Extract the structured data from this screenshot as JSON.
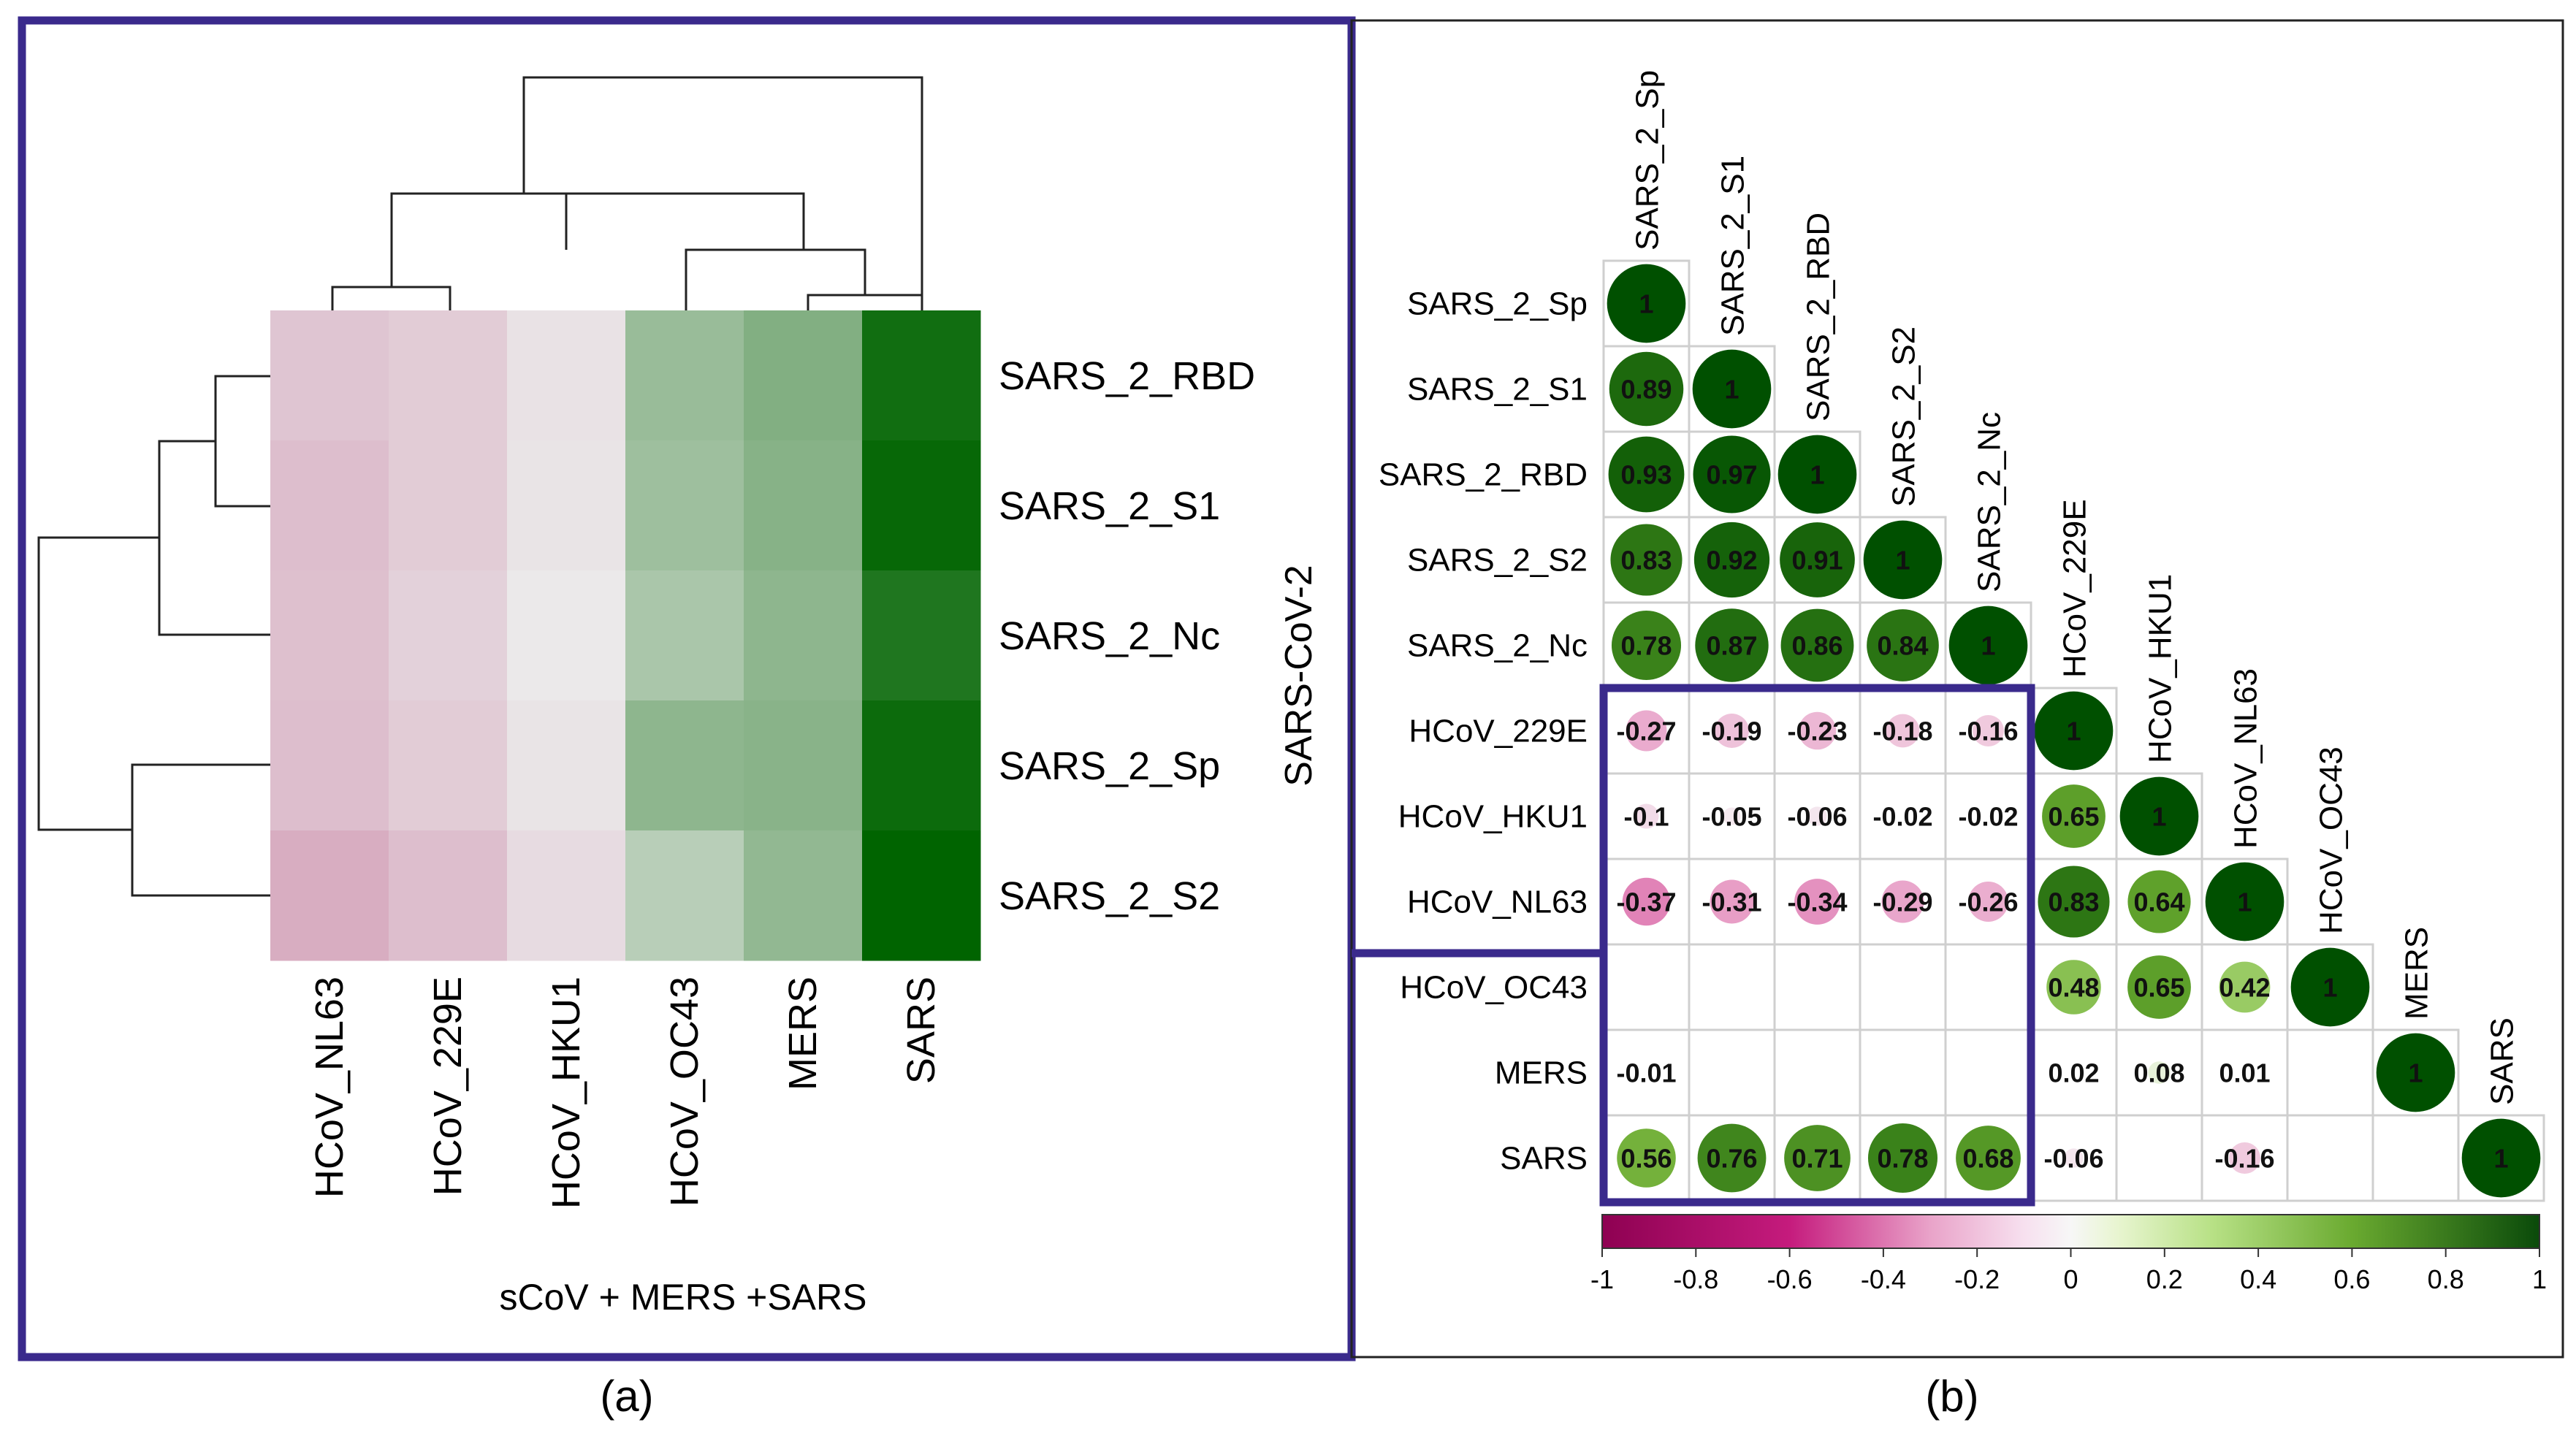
{
  "panel_a": {
    "caption": "(a)",
    "xlabel": "sCoV + MERS +SARS",
    "group_label": "SARS-CoV-2",
    "rows": [
      "SARS_2_RBD",
      "SARS_2_S1",
      "SARS_2_Nc",
      "SARS_2_Sp",
      "SARS_2_S2"
    ],
    "cols": [
      "HCoV_NL63",
      "HCoV_229E",
      "HCoV_HKU1",
      "HCoV_OC43",
      "MERS",
      "SARS"
    ]
  },
  "panel_b": {
    "caption": "(b)",
    "labels": [
      "SARS_2_Sp",
      "SARS_2_S1",
      "SARS_2_RBD",
      "SARS_2_S2",
      "SARS_2_Nc",
      "HCoV_229E",
      "HCoV_HKU1",
      "HCoV_NL63",
      "HCoV_OC43",
      "MERS",
      "SARS"
    ],
    "colorbar_ticks": [
      "-1",
      "-0.8",
      "-0.6",
      "-0.4",
      "-0.2",
      "0",
      "0.2",
      "0.4",
      "0.6",
      "0.8",
      "1"
    ]
  },
  "colors": {
    "frame": "#3a2a8c",
    "positive": "#006400",
    "negative": "#b0005a",
    "grid": "#cfcfcf"
  },
  "chart_data": [
    {
      "type": "heatmap",
      "title": "",
      "xlabel": "sCoV + MERS +SARS",
      "ylabel": "SARS-CoV-2",
      "rows": [
        "SARS_2_RBD",
        "SARS_2_S1",
        "SARS_2_Nc",
        "SARS_2_Sp",
        "SARS_2_S2"
      ],
      "cols": [
        "HCoV_NL63",
        "HCoV_229E",
        "HCoV_HKU1",
        "HCoV_OC43",
        "MERS",
        "SARS"
      ],
      "values": [
        [
          -0.23,
          -0.19,
          -0.06,
          0.35,
          0.45,
          0.93
        ],
        [
          -0.27,
          -0.19,
          -0.05,
          0.33,
          0.43,
          0.97
        ],
        [
          -0.26,
          -0.16,
          -0.02,
          0.28,
          0.4,
          0.87
        ],
        [
          -0.27,
          -0.19,
          -0.05,
          0.4,
          0.42,
          0.95
        ],
        [
          -0.37,
          -0.27,
          -0.1,
          0.22,
          0.38,
          1.0
        ]
      ],
      "color_range": [
        -1,
        1
      ],
      "dendrogram": "rows and columns clustered"
    },
    {
      "type": "table",
      "subtype": "correlation-matrix-lower",
      "labels": [
        "SARS_2_Sp",
        "SARS_2_S1",
        "SARS_2_RBD",
        "SARS_2_S2",
        "SARS_2_Nc",
        "HCoV_229E",
        "HCoV_HKU1",
        "HCoV_NL63",
        "HCoV_OC43",
        "MERS",
        "SARS"
      ],
      "values": [
        [
          1
        ],
        [
          0.89,
          1
        ],
        [
          0.93,
          0.97,
          1
        ],
        [
          0.83,
          0.92,
          0.91,
          1
        ],
        [
          0.78,
          0.87,
          0.86,
          0.84,
          1
        ],
        [
          -0.27,
          -0.19,
          -0.23,
          -0.18,
          -0.16,
          1
        ],
        [
          -0.1,
          -0.05,
          -0.06,
          -0.02,
          -0.02,
          0.65,
          1
        ],
        [
          -0.37,
          -0.31,
          -0.34,
          -0.29,
          -0.26,
          0.83,
          0.64,
          1
        ],
        [
          null,
          null,
          null,
          null,
          null,
          0.48,
          0.65,
          0.42,
          1
        ],
        [
          -0.01,
          null,
          null,
          null,
          null,
          0.02,
          0.08,
          0.01,
          null,
          1
        ],
        [
          0.56,
          0.76,
          0.71,
          0.78,
          0.68,
          -0.06,
          null,
          -0.16,
          null,
          null,
          1
        ]
      ],
      "colorbar": {
        "min": -1,
        "max": 1,
        "ticks": [
          -1,
          -0.8,
          -0.6,
          -0.4,
          -0.2,
          0,
          0.2,
          0.4,
          0.6,
          0.8,
          1
        ]
      }
    }
  ]
}
